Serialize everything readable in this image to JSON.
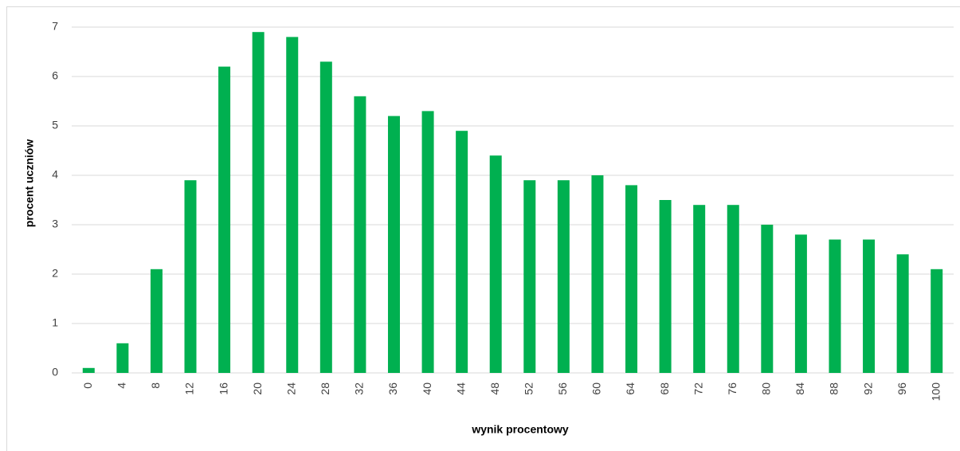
{
  "chart_data": {
    "type": "bar",
    "x_label": "wynik procentowy",
    "y_label": "procent uczniów",
    "categories": [
      "0",
      "4",
      "8",
      "12",
      "16",
      "20",
      "24",
      "28",
      "32",
      "36",
      "40",
      "44",
      "48",
      "52",
      "56",
      "60",
      "64",
      "68",
      "72",
      "76",
      "80",
      "84",
      "88",
      "92",
      "96",
      "100"
    ],
    "values": [
      0.1,
      0.6,
      2.1,
      3.9,
      6.2,
      6.9,
      6.8,
      6.3,
      5.6,
      5.2,
      5.3,
      4.9,
      4.4,
      3.9,
      3.9,
      4.0,
      3.8,
      3.5,
      3.4,
      3.4,
      3.0,
      2.8,
      2.7,
      2.7,
      2.4,
      2.1
    ],
    "color": "#00b050",
    "ylim": [
      0,
      7
    ],
    "yticks": [
      0,
      1,
      2,
      3,
      4,
      5,
      6,
      7
    ],
    "grid": true
  }
}
